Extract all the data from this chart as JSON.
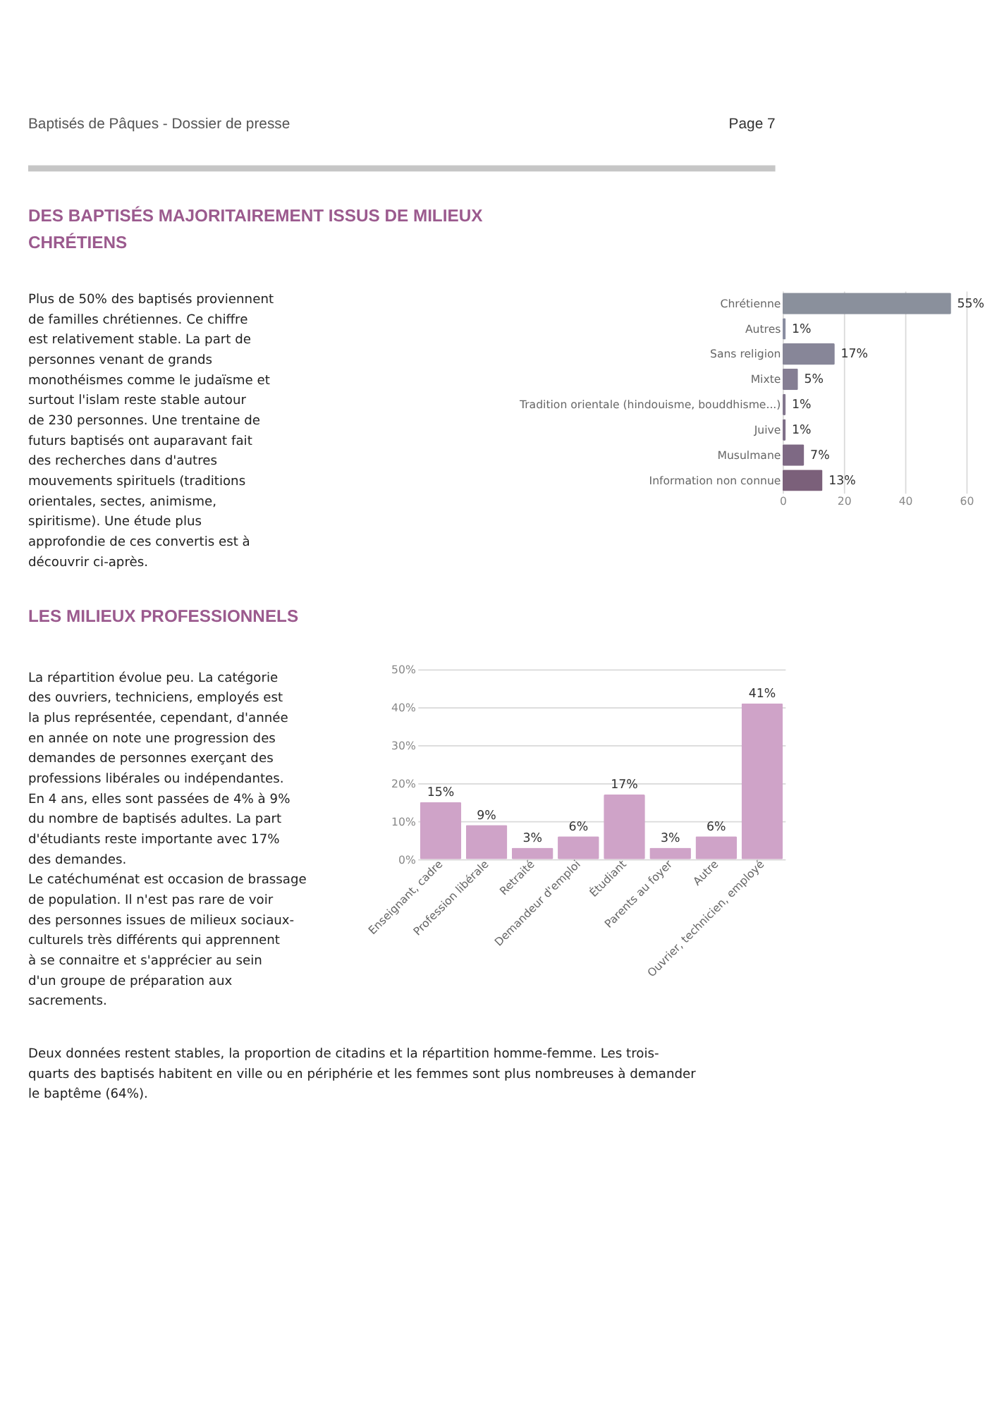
{
  "chart_data": [
    {
      "type": "bar",
      "orientation": "horizontal",
      "title": "DES BAPTISÉS MAJORITAIREMENT ISSUS DE MILIEUX CHRÉTIENS",
      "categories": [
        "Chrétienne",
        "Autres",
        "Sans religion",
        "Mixte",
        "Tradition orientale (hindouisme, bouddhisme...)",
        "Juive",
        "Musulmane",
        "Information non connue"
      ],
      "values": [
        55,
        1,
        17,
        5,
        1,
        1,
        7,
        13
      ],
      "colors": [
        "#8a909c",
        "#898da0",
        "#878698",
        "#857e93",
        "#83778e",
        "#807089",
        "#7e6984",
        "#7b607a"
      ],
      "value_labels": [
        "55%",
        "1%",
        "17%",
        "5%",
        "1%",
        "1%",
        "7%",
        "13%"
      ],
      "xlim": [
        0,
        60
      ],
      "xticks": [
        0,
        20,
        40,
        60
      ],
      "grid": "x",
      "annotations": [
        "Baptisés de Pâques - Dossier de presse",
        "Page 7",
        "Plus de 50% des baptisés proviennent de familles chrétiennes. Ce chiffre est relativement stable. La part de personnes venant de grands monothéismes comme le judaïsme et surtout l'islam reste stable autour de 230 personnes. Une trentaine de futurs baptisés ont auparavant fait des recherches dans d'autres mouvements spirituels (traditions orientales, sectes, animisme, spiritisme). Une étude plus approfondie de ces convertis est à découvrir ci-après."
      ]
    },
    {
      "type": "bar",
      "title": "LES MILIEUX PROFESSIONNELS",
      "categories": [
        "Enseignant, cadre",
        "Profession libérale",
        "Retraité",
        "Demandeur d'emploi",
        "Étudiant",
        "Parents au foyer",
        "Autre",
        "Ouvrier, technicien, employé"
      ],
      "values": [
        15,
        9,
        3,
        6,
        17,
        3,
        6,
        41
      ],
      "color": "#cfa3c8",
      "value_labels": [
        "15%",
        "9%",
        "3%",
        "6%",
        "17%",
        "3%",
        "6%",
        "41%"
      ],
      "ylim": [
        0,
        50
      ],
      "yticks": [
        {
          "value": 0,
          "label": "0%"
        },
        {
          "value": 10,
          "label": "10%"
        },
        {
          "value": 20,
          "label": "20%"
        },
        {
          "value": 30,
          "label": "30%"
        },
        {
          "value": 40,
          "label": "40%"
        },
        {
          "value": 50,
          "label": "50%"
        }
      ],
      "grid": "y",
      "annotations": [
        "La répartition évolue peu. La catégorie des ouvriers, techniciens, employés est la plus représentée, cependant, d'année en année on note une progression des demandes de personnes exerçant des professions libérales ou indépendantes. En 4 ans, elles sont passées de 4% à 9% du nombre de baptisés adultes. La part d'étudiants reste importante avec 17% des demandes.",
        "Le catéchuménat est occasion de brassage de population. Il n'est pas rare de voir des personnes issues de milieux sociaux-culturels très différents qui apprennent à se connaitre et s'apprécier au sein d'un groupe de préparation aux sacrements.",
        "Deux données restent stables, la proportion de citadins et la répartition homme-femme. Les trois-quarts des baptisés habitent en ville ou en périphérie et les femmes sont plus nombreuses à demander le baptême (64%)."
      ]
    }
  ]
}
